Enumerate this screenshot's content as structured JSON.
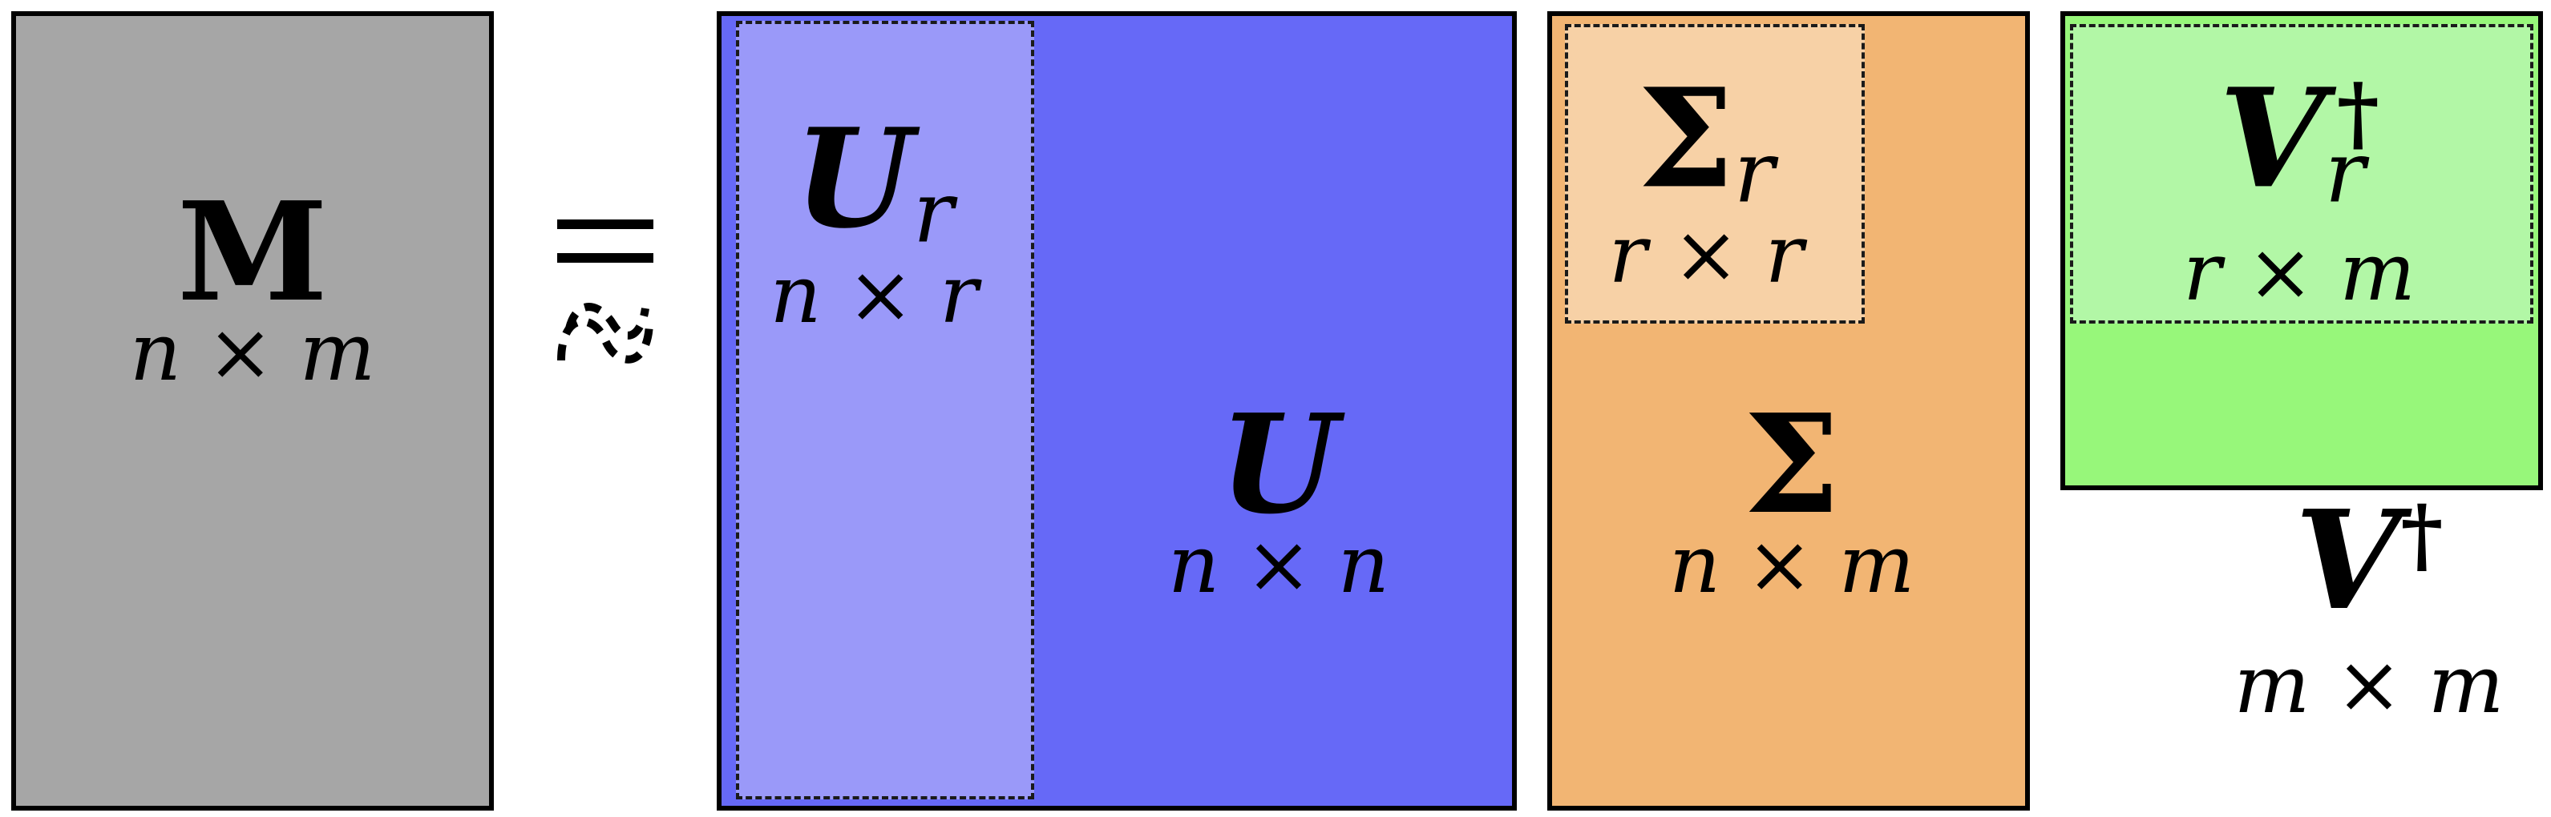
{
  "matrices": {
    "M": {
      "symbol": "M",
      "dims": "n × m"
    },
    "U": {
      "symbol": "U",
      "dims": "n × n"
    },
    "U_r": {
      "symbol": "U",
      "subscript": "r",
      "dims": "n × r"
    },
    "Sigma": {
      "symbol": "Σ",
      "dims": "n × m"
    },
    "Sigma_r": {
      "symbol": "Σ",
      "subscript": "r",
      "dims": "r × r"
    },
    "V_dag": {
      "symbol": "V",
      "superscript": "†",
      "dims": "m × m"
    },
    "V_r_dag": {
      "symbol": "V",
      "subscript": "r",
      "superscript": "†",
      "dims": "r × m"
    }
  },
  "relation": {
    "symbol": "approx-equals-icon"
  },
  "colors": {
    "M": "#a6a6a6",
    "U": "#6669f7",
    "U_r": "#9a99f9",
    "Sigma": "#f2b573",
    "Sigma_r": "#f7d1a6",
    "V": "#97f77a",
    "V_r": "#b2f7a6"
  }
}
